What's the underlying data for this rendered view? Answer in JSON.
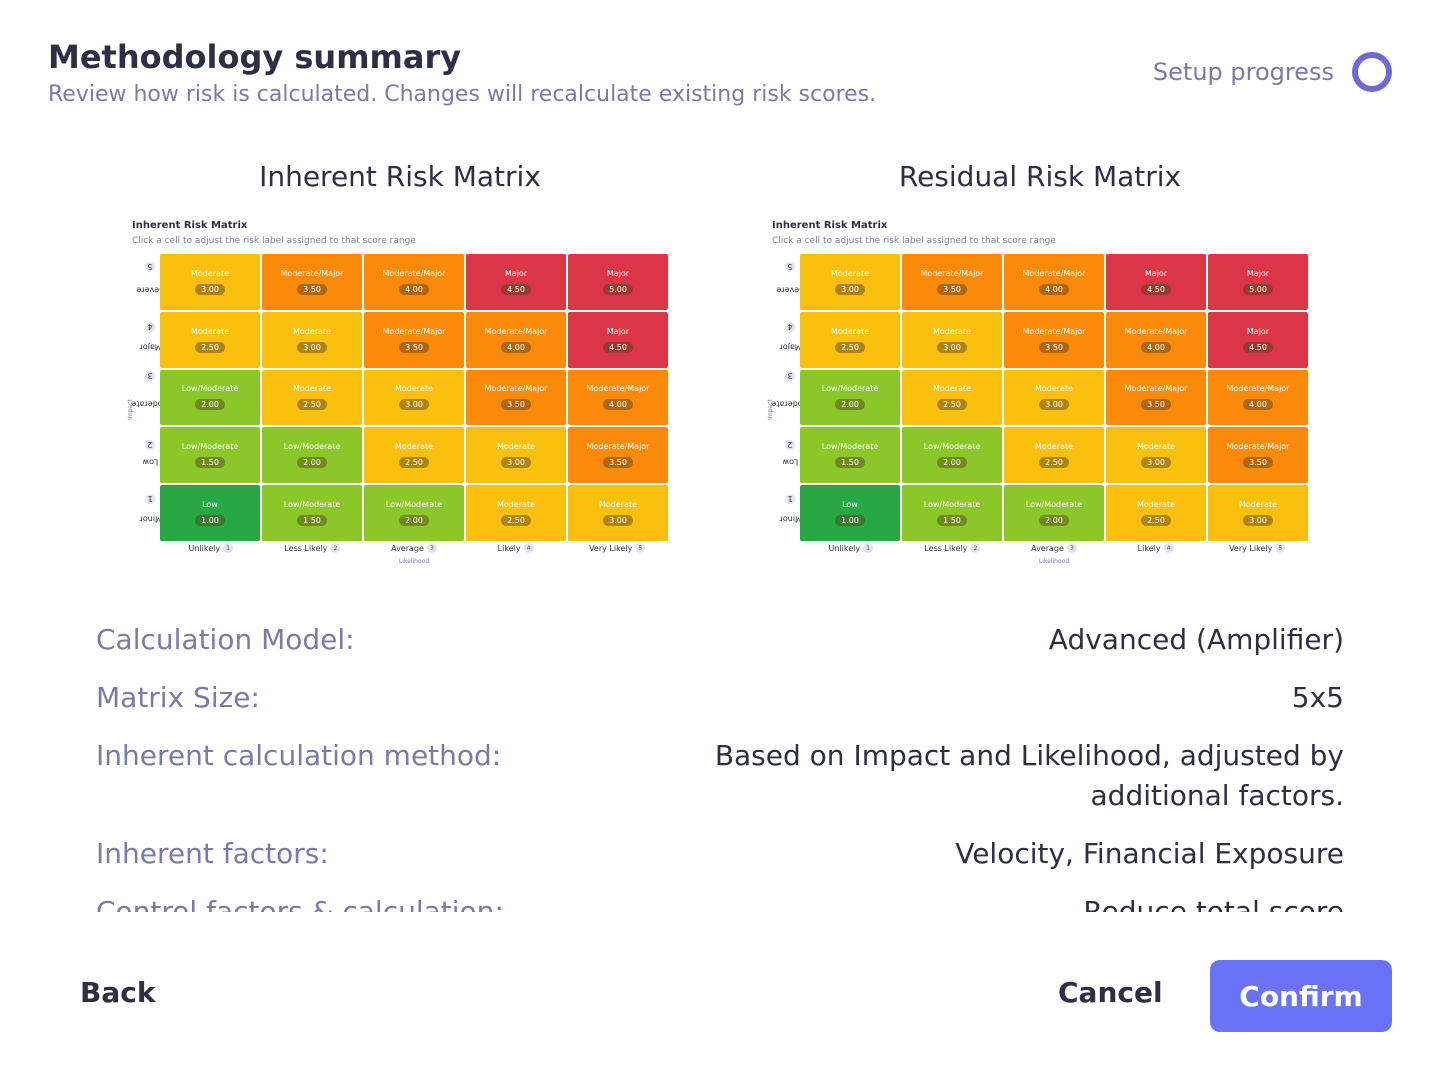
{
  "header": {
    "title": "Methodology summary",
    "subtitle": "Review how risk is calculated. Changes will recalculate existing risk scores.",
    "progress_label": "Setup progress"
  },
  "colors": {
    "Low": "#27a844",
    "Low/Moderate": "#8cc72a",
    "Moderate": "#fbbf0d",
    "Moderate/Major": "#fb8a0b",
    "Major": "#dc3545",
    "accent": "#6b72f5"
  },
  "matrices": [
    {
      "heading": "Inherent Risk Matrix",
      "mini_title": "Inherent Risk Matrix",
      "mini_subtitle": "Click a cell to adjust the risk label assigned to that score range",
      "y_axis_title": "Impact",
      "x_axis_title": "Likelihood",
      "rows": [
        {
          "name": "Severe",
          "num": "5"
        },
        {
          "name": "Major",
          "num": "4"
        },
        {
          "name": "Moderate",
          "num": "3"
        },
        {
          "name": "Low",
          "num": "2"
        },
        {
          "name": "Minor",
          "num": "1"
        }
      ],
      "columns": [
        {
          "name": "Unlikely",
          "num": "1"
        },
        {
          "name": "Less Likely",
          "num": "2"
        },
        {
          "name": "Average",
          "num": "3"
        },
        {
          "name": "Likely",
          "num": "4"
        },
        {
          "name": "Very Likely",
          "num": "5"
        }
      ],
      "cells": [
        [
          {
            "label": "Moderate",
            "score": "3.00"
          },
          {
            "label": "Moderate/Major",
            "score": "3.50"
          },
          {
            "label": "Moderate/Major",
            "score": "4.00"
          },
          {
            "label": "Major",
            "score": "4.50"
          },
          {
            "label": "Major",
            "score": "5.00"
          }
        ],
        [
          {
            "label": "Moderate",
            "score": "2.50"
          },
          {
            "label": "Moderate",
            "score": "3.00"
          },
          {
            "label": "Moderate/Major",
            "score": "3.50"
          },
          {
            "label": "Moderate/Major",
            "score": "4.00"
          },
          {
            "label": "Major",
            "score": "4.50"
          }
        ],
        [
          {
            "label": "Low/Moderate",
            "score": "2.00"
          },
          {
            "label": "Moderate",
            "score": "2.50"
          },
          {
            "label": "Moderate",
            "score": "3.00"
          },
          {
            "label": "Moderate/Major",
            "score": "3.50"
          },
          {
            "label": "Moderate/Major",
            "score": "4.00"
          }
        ],
        [
          {
            "label": "Low/Moderate",
            "score": "1.50"
          },
          {
            "label": "Low/Moderate",
            "score": "2.00"
          },
          {
            "label": "Moderate",
            "score": "2.50"
          },
          {
            "label": "Moderate",
            "score": "3.00"
          },
          {
            "label": "Moderate/Major",
            "score": "3.50"
          }
        ],
        [
          {
            "label": "Low",
            "score": "1.00"
          },
          {
            "label": "Low/Moderate",
            "score": "1.50"
          },
          {
            "label": "Low/Moderate",
            "score": "2.00"
          },
          {
            "label": "Moderate",
            "score": "2.50"
          },
          {
            "label": "Moderate",
            "score": "3.00"
          }
        ]
      ]
    },
    {
      "heading": "Residual Risk Matrix",
      "mini_title": "Inherent Risk Matrix",
      "mini_subtitle": "Click a cell to adjust the risk label assigned to that score range",
      "y_axis_title": "Impact",
      "x_axis_title": "Likelihood",
      "rows": [
        {
          "name": "Severe",
          "num": "5"
        },
        {
          "name": "Major",
          "num": "4"
        },
        {
          "name": "Moderate",
          "num": "3"
        },
        {
          "name": "Low",
          "num": "2"
        },
        {
          "name": "Minor",
          "num": "1"
        }
      ],
      "columns": [
        {
          "name": "Unlikely",
          "num": "1"
        },
        {
          "name": "Less Likely",
          "num": "2"
        },
        {
          "name": "Average",
          "num": "3"
        },
        {
          "name": "Likely",
          "num": "4"
        },
        {
          "name": "Very Likely",
          "num": "5"
        }
      ],
      "cells": [
        [
          {
            "label": "Moderate",
            "score": "3.00"
          },
          {
            "label": "Moderate/Major",
            "score": "3.50"
          },
          {
            "label": "Moderate/Major",
            "score": "4.00"
          },
          {
            "label": "Major",
            "score": "4.50"
          },
          {
            "label": "Major",
            "score": "5.00"
          }
        ],
        [
          {
            "label": "Moderate",
            "score": "2.50"
          },
          {
            "label": "Moderate",
            "score": "3.00"
          },
          {
            "label": "Moderate/Major",
            "score": "3.50"
          },
          {
            "label": "Moderate/Major",
            "score": "4.00"
          },
          {
            "label": "Major",
            "score": "4.50"
          }
        ],
        [
          {
            "label": "Low/Moderate",
            "score": "2.00"
          },
          {
            "label": "Moderate",
            "score": "2.50"
          },
          {
            "label": "Moderate",
            "score": "3.00"
          },
          {
            "label": "Moderate/Major",
            "score": "3.50"
          },
          {
            "label": "Moderate/Major",
            "score": "4.00"
          }
        ],
        [
          {
            "label": "Low/Moderate",
            "score": "1.50"
          },
          {
            "label": "Low/Moderate",
            "score": "2.00"
          },
          {
            "label": "Moderate",
            "score": "2.50"
          },
          {
            "label": "Moderate",
            "score": "3.00"
          },
          {
            "label": "Moderate/Major",
            "score": "3.50"
          }
        ],
        [
          {
            "label": "Low",
            "score": "1.00"
          },
          {
            "label": "Low/Moderate",
            "score": "1.50"
          },
          {
            "label": "Low/Moderate",
            "score": "2.00"
          },
          {
            "label": "Moderate",
            "score": "2.50"
          },
          {
            "label": "Moderate",
            "score": "3.00"
          }
        ]
      ]
    }
  ],
  "details": [
    {
      "label": "Calculation Model:",
      "value": "Advanced (Amplifier)"
    },
    {
      "label": "Matrix Size:",
      "value": "5x5"
    },
    {
      "label": "Inherent calculation method:",
      "value": "Based on Impact and Likelihood, adjusted by additional factors."
    },
    {
      "label": "Inherent factors:",
      "value": "Velocity, Financial Exposure"
    },
    {
      "label": "Control factors & calculation:",
      "value": "Reduce total score"
    }
  ],
  "footer": {
    "back_label": "Back",
    "cancel_label": "Cancel",
    "confirm_label": "Confirm"
  }
}
